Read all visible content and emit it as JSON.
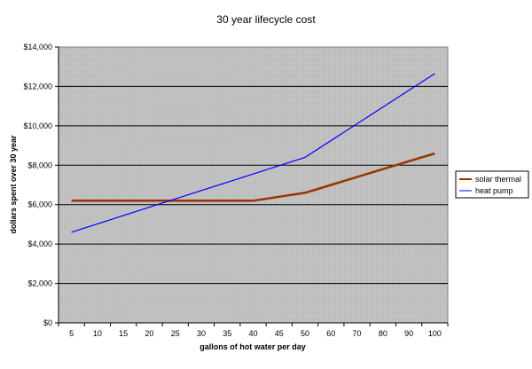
{
  "chart_data": {
    "type": "line",
    "title": "30 year lifecycle cost",
    "xlabel": "gallons of hot water per day",
    "ylabel": "dollars spent over 30 year",
    "categories": [
      "5",
      "10",
      "15",
      "20",
      "25",
      "30",
      "35",
      "40",
      "45",
      "50",
      "60",
      "70",
      "80",
      "90",
      "100"
    ],
    "ylim": [
      0,
      14000
    ],
    "yticks": [
      "$0",
      "$2,000",
      "$4,000",
      "$6,000",
      "$8,000",
      "$10,000",
      "$12,000",
      "$14,000"
    ],
    "grid": true,
    "legend_position": "right",
    "plot_background": "#c0c0c0",
    "series": [
      {
        "name": "solar thermal",
        "color": "#993300",
        "x": [
          "5",
          "10",
          "15",
          "20",
          "25",
          "30",
          "35",
          "40",
          "45",
          "50",
          "60",
          "70",
          "80",
          "90",
          "100"
        ],
        "values": [
          6200,
          6200,
          6200,
          6200,
          6200,
          6200,
          6200,
          6200,
          6400,
          6600,
          7000,
          7400,
          7800,
          8200,
          8600
        ]
      },
      {
        "name": "heat pump",
        "color": "#0000ff",
        "x": [
          "5",
          "50",
          "100"
        ],
        "values": [
          4600,
          8400,
          12650
        ]
      }
    ]
  }
}
